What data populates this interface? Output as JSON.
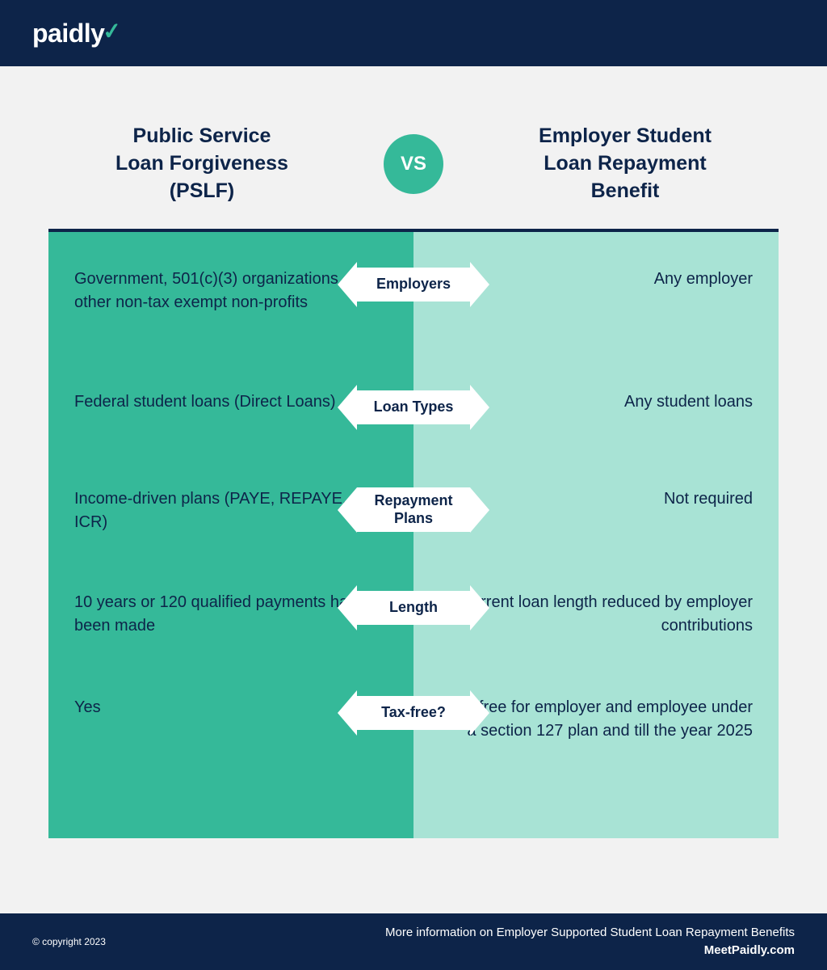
{
  "logo": {
    "text": "paidly"
  },
  "titles": {
    "left": "Public Service\nLoan Forgiveness\n(PSLF)",
    "vs": "VS",
    "right": "Employer Student\nLoan Repayment\nBenefit"
  },
  "colors": {
    "header_bg": "#0d2449",
    "accent": "#35b999",
    "left_col": "#35b999",
    "right_col": "#a8e3d5",
    "text_dark": "#0d2449",
    "badge_bg": "#ffffff"
  },
  "rows": [
    {
      "category": "Employers",
      "left": "Government, 501(c)(3) organizations, or other non-tax exempt non-profits",
      "right": "Any employer"
    },
    {
      "category": "Loan Types",
      "left": "Federal student loans (Direct Loans)",
      "right": "Any student loans"
    },
    {
      "category": "Repayment Plans",
      "left": "Income-driven plans (PAYE, REPAYE, IBR, ICR)",
      "right": "Not required"
    },
    {
      "category": "Length",
      "left": "10 years or 120 qualified payments have been made",
      "right": "Current loan length reduced by employer contributions"
    },
    {
      "category": "Tax-free?",
      "left": "Yes",
      "right": "Tax-free for employer and employee under a section 127 plan and till the year 2025"
    }
  ],
  "footer": {
    "copyright": "© copyright 2023",
    "info_line": "More information on Employer Supported Student Loan Repayment Benefits",
    "site": "MeetPaidly.com"
  }
}
